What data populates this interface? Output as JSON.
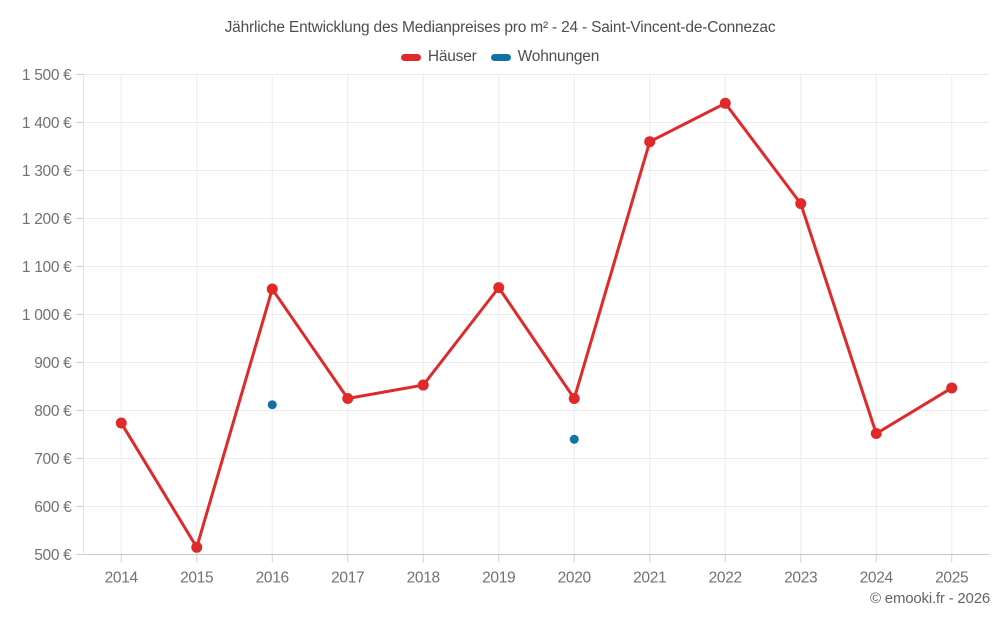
{
  "title": "Jährliche Entwicklung des Medianpreises pro m² - 24 - Saint-Vincent-de-Connezac",
  "footer": "© emooki.fr - 2026",
  "colors": {
    "hauser_red": "#e02a2a",
    "wohnungen_blue": "#1272a8",
    "grid_line": "#ececec",
    "axis_line": "#c9c9c9",
    "tick_mark": "#d2d2d2",
    "axis_text": "#717171",
    "title_text": "#4e4e4e"
  },
  "chart_data": {
    "type": "line",
    "title": "Jährliche Entwicklung des Medianpreises pro m² - 24 - Saint-Vincent-de-Connezac",
    "categories": [
      "2014",
      "2015",
      "2016",
      "2017",
      "2018",
      "2019",
      "2020",
      "2021",
      "2022",
      "2023",
      "2024",
      "2025"
    ],
    "series": [
      {
        "name": "Häuser",
        "key": "haeuser",
        "color": "#e02a2a",
        "style": "line-with-points",
        "values": [
          774,
          515,
          1053,
          825,
          853,
          1056,
          825,
          1360,
          1440,
          1231,
          752,
          847
        ]
      },
      {
        "name": "Wohnungen",
        "key": "wohnungen",
        "color": "#1272a8",
        "style": "points-only",
        "values": [
          null,
          null,
          812,
          null,
          null,
          null,
          740,
          null,
          null,
          null,
          null,
          null
        ]
      }
    ],
    "xlabel": "",
    "ylabel": "",
    "ylim": [
      500,
      1500
    ],
    "ytick_step": 100,
    "ytick_suffix": "€",
    "grid": true,
    "legend_position": "top"
  }
}
